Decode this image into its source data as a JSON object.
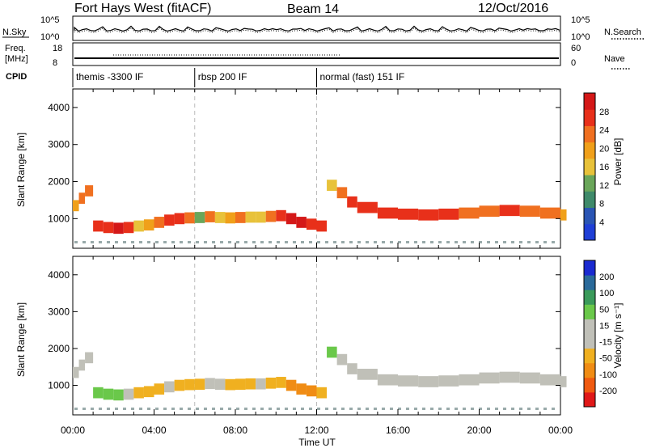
{
  "header": {
    "station": "Fort Hays West (fitACF)",
    "beam": "Beam 14",
    "date": "12/Oct/2016"
  },
  "status_panels": {
    "nsky_label": "N.Sky",
    "nsearch_label": "N.Search",
    "noise_ticks": [
      "10^5",
      "10^0"
    ],
    "freq_label_line1": "Freq.",
    "freq_label_line2": "[MHz]",
    "freq_ticks": [
      "18",
      "8"
    ],
    "nave_label": "Nave",
    "nave_ticks": [
      "60",
      "0"
    ],
    "cpid_label": "CPID"
  },
  "cpid_segments": [
    {
      "label": "themis -3300 IF",
      "start_hour": 0
    },
    {
      "label": "rbsp 200 IF",
      "start_hour": 6
    },
    {
      "label": "normal (fast) 151 IF",
      "start_hour": 12
    }
  ],
  "colors": {
    "power_scale": [
      "#1f3fd6",
      "#2a55b4",
      "#3f8a6a",
      "#6aa65a",
      "#e8c23a",
      "#f0a01a",
      "#f07020",
      "#e8301a",
      "#d41818"
    ],
    "velocity_scale": [
      "#e01818",
      "#f05a10",
      "#f08c14",
      "#f0b020",
      "#c0c0b8",
      "#c0c0b8",
      "#6ac84a",
      "#3a9a5a",
      "#2a6a9a",
      "#1a2ad0"
    ]
  },
  "chart_data": [
    {
      "type": "heatmap",
      "name": "power",
      "xlabel": "",
      "ylabel": "Slant Range [km]",
      "xlim": [
        0,
        24
      ],
      "ylim": [
        200,
        4500
      ],
      "yticks": [
        "1000",
        "2000",
        "3000",
        "4000"
      ],
      "xticks": [
        "00:00",
        "04:00",
        "08:00",
        "12:00",
        "16:00",
        "20:00",
        "00:00"
      ],
      "colorbar": {
        "label": "Power [dB]",
        "ticks": [
          "4",
          "8",
          "12",
          "16",
          "20",
          "24",
          "28"
        ],
        "range": [
          0,
          30
        ]
      },
      "series": [
        {
          "hour": [
            0.0,
            0.3,
            0.6,
            1.0,
            1.5,
            2.0,
            2.5,
            3.0,
            3.5,
            4.0,
            4.5,
            5.0,
            5.5,
            6.0,
            6.5,
            7.0,
            7.5,
            8.0,
            8.5,
            9.0,
            9.5,
            10.0,
            10.5,
            11.0,
            11.5,
            12.0,
            12.5,
            13.0,
            13.5,
            14.0,
            15.0,
            16.0,
            17.0,
            18.0,
            19.0,
            20.0,
            21.0,
            22.0,
            23.0,
            24.0
          ],
          "range_km": [
            1350,
            1550,
            1750,
            800,
            760,
            740,
            760,
            800,
            830,
            900,
            960,
            1000,
            1020,
            1030,
            1050,
            1030,
            1020,
            1030,
            1040,
            1040,
            1060,
            1080,
            1000,
            900,
            850,
            800,
            1900,
            1700,
            1450,
            1300,
            1150,
            1120,
            1100,
            1120,
            1150,
            1200,
            1220,
            1200,
            1150,
            1100
          ],
          "power_db": [
            18,
            22,
            20,
            24,
            26,
            28,
            24,
            16,
            18,
            22,
            24,
            26,
            22,
            12,
            20,
            16,
            18,
            20,
            16,
            14,
            22,
            26,
            28,
            28,
            26,
            24,
            14,
            22,
            24,
            26,
            26,
            26,
            24,
            24,
            22,
            22,
            24,
            22,
            20,
            18
          ]
        }
      ]
    },
    {
      "type": "heatmap",
      "name": "velocity",
      "xlabel": "Time UT",
      "ylabel": "Slant Range [km]",
      "xlim": [
        0,
        24
      ],
      "ylim": [
        200,
        4500
      ],
      "yticks": [
        "1000",
        "2000",
        "3000",
        "4000"
      ],
      "xticks": [
        "00:00",
        "04:00",
        "08:00",
        "12:00",
        "16:00",
        "20:00",
        "00:00"
      ],
      "colorbar": {
        "label": "Velocity [m s⁻¹]",
        "ticks": [
          "-200",
          "-100",
          "-50",
          "-15",
          "15",
          "50",
          "100",
          "200"
        ]
      },
      "series": [
        {
          "hour": [
            0.0,
            0.3,
            0.6,
            1.0,
            1.5,
            2.0,
            2.5,
            3.0,
            3.5,
            4.0,
            4.5,
            5.0,
            5.5,
            6.0,
            6.5,
            7.0,
            7.5,
            8.0,
            8.5,
            9.0,
            9.5,
            10.0,
            10.5,
            11.0,
            11.5,
            12.0,
            12.5,
            13.0,
            13.5,
            14.0,
            15.0,
            16.0,
            17.0,
            18.0,
            19.0,
            20.0,
            21.0,
            22.0,
            23.0,
            24.0
          ],
          "range_km": [
            1350,
            1550,
            1750,
            800,
            760,
            740,
            760,
            800,
            830,
            900,
            960,
            1000,
            1020,
            1030,
            1050,
            1030,
            1020,
            1030,
            1040,
            1040,
            1060,
            1080,
            1000,
            900,
            850,
            800,
            1900,
            1700,
            1450,
            1300,
            1150,
            1120,
            1100,
            1120,
            1150,
            1200,
            1220,
            1200,
            1150,
            1100
          ],
          "velocity_ms": [
            0,
            0,
            0,
            30,
            30,
            20,
            0,
            -30,
            -30,
            -30,
            0,
            -30,
            -30,
            -20,
            0,
            0,
            -20,
            -30,
            -20,
            0,
            -30,
            -40,
            -60,
            -70,
            -60,
            -40,
            40,
            0,
            0,
            0,
            0,
            0,
            0,
            0,
            0,
            0,
            0,
            0,
            0,
            0
          ]
        }
      ]
    }
  ]
}
